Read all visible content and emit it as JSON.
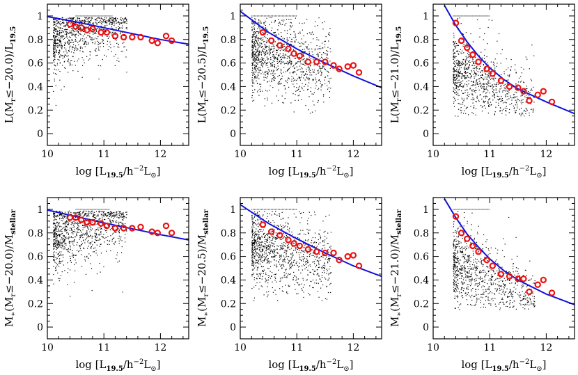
{
  "colors": {
    "scatter": "#000000",
    "fit_line": "#1010e0",
    "binned": "#ee1010",
    "frame": "#000000"
  },
  "shared": {
    "xlabel": "log [L19.5/h⁻²L⊙]",
    "xticks": [
      "10",
      "11",
      "12"
    ],
    "yticks": [
      "0",
      "0.2",
      "0.4",
      "0.6",
      "0.8",
      "1"
    ]
  },
  "chart_data": [
    {
      "type": "scatter",
      "ylabel": "L(Mr≤−20.0)/L19.5",
      "threshold": -20.0,
      "quantity": "L",
      "xlim": [
        10,
        12.5
      ],
      "ylim": [
        -0.1,
        1.1
      ],
      "fit_line": [
        [
          10,
          0.995
        ],
        [
          10.5,
          0.95
        ],
        [
          11,
          0.9
        ],
        [
          11.5,
          0.85
        ],
        [
          12,
          0.8
        ],
        [
          12.5,
          0.76
        ]
      ],
      "binned": {
        "x": [
          10.4,
          10.5,
          10.6,
          10.7,
          10.8,
          10.95,
          11.05,
          11.2,
          11.35,
          11.5,
          11.65,
          11.85,
          11.95,
          12.1,
          12.2
        ],
        "y": [
          0.93,
          0.91,
          0.9,
          0.88,
          0.89,
          0.86,
          0.86,
          0.83,
          0.82,
          0.82,
          0.82,
          0.79,
          0.77,
          0.83,
          0.79
        ]
      },
      "cloud": {
        "xrange": [
          10.1,
          11.4
        ],
        "center": 0.8,
        "spread": 0.14,
        "slope": 0.12,
        "n": 900
      },
      "top_stripe": [
        10.5,
        11.15
      ]
    },
    {
      "type": "scatter",
      "ylabel": "L(Mr≤−20.5)/L19.5",
      "threshold": -20.5,
      "quantity": "L",
      "xlim": [
        10,
        12.5
      ],
      "ylim": [
        -0.1,
        1.1
      ],
      "fit_line": [
        [
          10,
          1.04
        ],
        [
          10.5,
          0.86
        ],
        [
          11,
          0.72
        ],
        [
          11.5,
          0.6
        ],
        [
          12,
          0.49
        ],
        [
          12.5,
          0.39
        ]
      ],
      "binned": {
        "x": [
          10.4,
          10.55,
          10.7,
          10.85,
          10.95,
          11.05,
          11.2,
          11.35,
          11.5,
          11.65,
          11.75,
          11.9,
          12.0,
          12.1
        ],
        "y": [
          0.86,
          0.79,
          0.75,
          0.72,
          0.68,
          0.66,
          0.61,
          0.61,
          0.61,
          0.58,
          0.55,
          0.57,
          0.58,
          0.52
        ]
      },
      "cloud": {
        "xrange": [
          10.2,
          11.6
        ],
        "center": 0.7,
        "spread": 0.16,
        "slope": -0.1,
        "n": 1100
      },
      "top_stripe": [
        10.2,
        11.0
      ]
    },
    {
      "type": "scatter",
      "ylabel": "L(Mr≤−21.0)/L19.5",
      "threshold": -21.0,
      "quantity": "L",
      "xlim": [
        10,
        12.5
      ],
      "ylim": [
        -0.1,
        1.1
      ],
      "fit_line": [
        [
          10.2,
          1.09
        ],
        [
          10.4,
          0.92
        ],
        [
          10.6,
          0.78
        ],
        [
          10.8,
          0.66
        ],
        [
          11,
          0.56
        ],
        [
          11.25,
          0.46
        ],
        [
          11.5,
          0.38
        ],
        [
          12,
          0.27
        ],
        [
          12.5,
          0.17
        ]
      ],
      "binned": {
        "x": [
          10.4,
          10.5,
          10.6,
          10.7,
          10.8,
          10.95,
          11.05,
          11.2,
          11.35,
          11.5,
          11.6,
          11.7,
          11.85,
          11.95,
          12.1
        ],
        "y": [
          0.94,
          0.79,
          0.73,
          0.67,
          0.61,
          0.55,
          0.51,
          0.45,
          0.4,
          0.39,
          0.36,
          0.28,
          0.33,
          0.36,
          0.27
        ]
      },
      "cloud": {
        "xrange": [
          10.35,
          11.8
        ],
        "center": 0.55,
        "spread": 0.16,
        "slope": -0.25,
        "n": 1000
      },
      "top_stripe": [
        10.35,
        11.0
      ]
    },
    {
      "type": "scatter",
      "ylabel": "M∗(Mr≤−20.0)/Mstellar",
      "threshold": -20.0,
      "quantity": "M",
      "xlim": [
        10,
        12.5
      ],
      "ylim": [
        -0.1,
        1.1
      ],
      "fit_line": [
        [
          10,
          0.995
        ],
        [
          10.5,
          0.94
        ],
        [
          11,
          0.885
        ],
        [
          11.5,
          0.835
        ],
        [
          12,
          0.785
        ],
        [
          12.5,
          0.74
        ]
      ],
      "binned": {
        "x": [
          10.4,
          10.5,
          10.6,
          10.7,
          10.8,
          10.95,
          11.05,
          11.2,
          11.35,
          11.5,
          11.65,
          11.85,
          11.95,
          12.1,
          12.2
        ],
        "y": [
          0.93,
          0.93,
          0.91,
          0.89,
          0.89,
          0.88,
          0.86,
          0.84,
          0.84,
          0.84,
          0.85,
          0.81,
          0.8,
          0.86,
          0.8
        ]
      },
      "cloud": {
        "xrange": [
          10.1,
          11.4
        ],
        "center": 0.78,
        "spread": 0.15,
        "slope": 0.1,
        "n": 1000
      },
      "top_stripe": [
        10.5,
        11.1
      ]
    },
    {
      "type": "scatter",
      "ylabel": "M∗(Mr≤−20.5)/Mstellar",
      "threshold": -20.5,
      "quantity": "M",
      "xlim": [
        10,
        12.5
      ],
      "ylim": [
        -0.1,
        1.1
      ],
      "fit_line": [
        [
          10,
          1.04
        ],
        [
          10.5,
          0.88
        ],
        [
          11,
          0.75
        ],
        [
          11.5,
          0.63
        ],
        [
          12,
          0.52
        ],
        [
          12.5,
          0.43
        ]
      ],
      "binned": {
        "x": [
          10.4,
          10.55,
          10.7,
          10.85,
          10.95,
          11.05,
          11.2,
          11.35,
          11.5,
          11.65,
          11.75,
          11.9,
          12.0,
          12.1
        ],
        "y": [
          0.87,
          0.81,
          0.78,
          0.74,
          0.71,
          0.69,
          0.66,
          0.64,
          0.63,
          0.63,
          0.57,
          0.6,
          0.61,
          0.52
        ]
      },
      "cloud": {
        "xrange": [
          10.2,
          11.6
        ],
        "center": 0.7,
        "spread": 0.16,
        "slope": -0.1,
        "n": 1100
      },
      "top_stripe": [
        10.2,
        11.0
      ]
    },
    {
      "type": "scatter",
      "ylabel": "M∗(Mr≤−21.0)/Mstellar",
      "threshold": -21.0,
      "quantity": "M",
      "xlim": [
        10,
        12.5
      ],
      "ylim": [
        -0.1,
        1.1
      ],
      "fit_line": [
        [
          10.2,
          1.09
        ],
        [
          10.4,
          0.93
        ],
        [
          10.6,
          0.79
        ],
        [
          10.8,
          0.68
        ],
        [
          11,
          0.58
        ],
        [
          11.25,
          0.48
        ],
        [
          11.5,
          0.4
        ],
        [
          12,
          0.28
        ],
        [
          12.5,
          0.19
        ]
      ],
      "binned": {
        "x": [
          10.4,
          10.5,
          10.6,
          10.7,
          10.8,
          10.95,
          11.05,
          11.2,
          11.35,
          11.5,
          11.6,
          11.7,
          11.85,
          11.95,
          12.1
        ],
        "y": [
          0.94,
          0.8,
          0.75,
          0.69,
          0.64,
          0.57,
          0.52,
          0.45,
          0.43,
          0.41,
          0.41,
          0.3,
          0.36,
          0.4,
          0.29
        ]
      },
      "cloud": {
        "xrange": [
          10.35,
          11.8
        ],
        "center": 0.55,
        "spread": 0.16,
        "slope": -0.25,
        "n": 1000
      },
      "top_stripe": [
        10.35,
        11.0
      ]
    }
  ]
}
